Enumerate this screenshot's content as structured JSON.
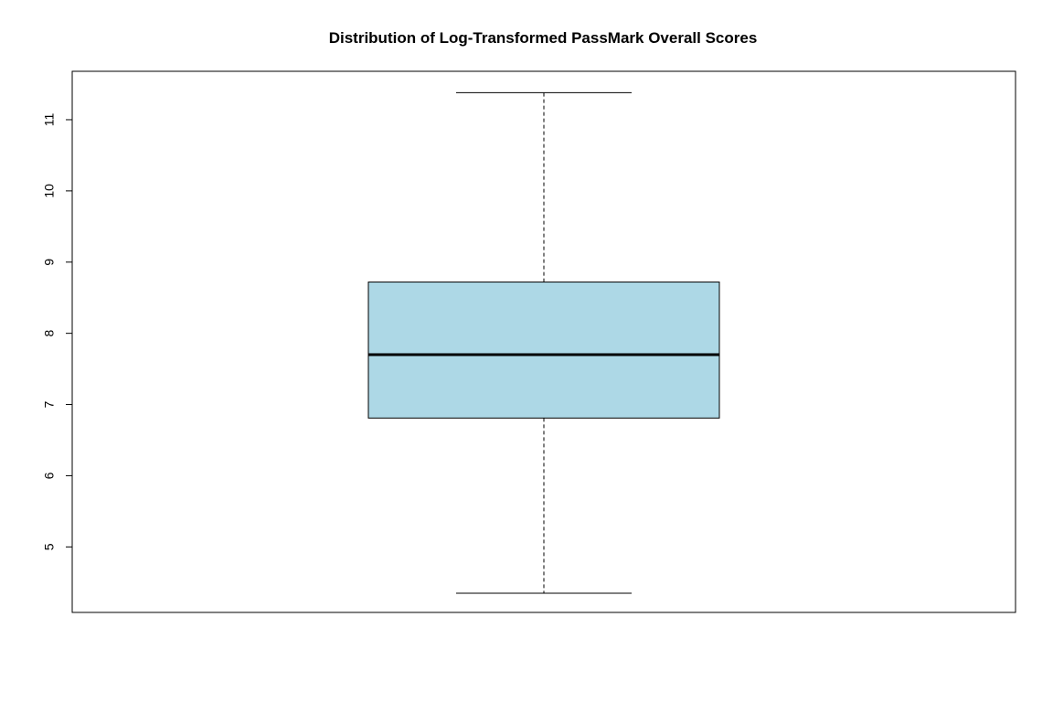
{
  "chart_data": {
    "type": "boxplot",
    "title": "Distribution of Log-Transformed PassMark Overall Scores",
    "xlabel": "",
    "ylabel": "",
    "ylim": [
      4.08,
      11.68
    ],
    "yticks": [
      5,
      6,
      7,
      8,
      9,
      10,
      11
    ],
    "ytick_labels": [
      "5",
      "6",
      "7",
      "8",
      "9",
      "10",
      "11"
    ],
    "grid": false,
    "legend": "none",
    "box": {
      "whisker_low": 4.35,
      "q1": 6.81,
      "median": 7.7,
      "q3": 8.72,
      "whisker_high": 11.38,
      "fill_color": "#add8e6"
    }
  }
}
